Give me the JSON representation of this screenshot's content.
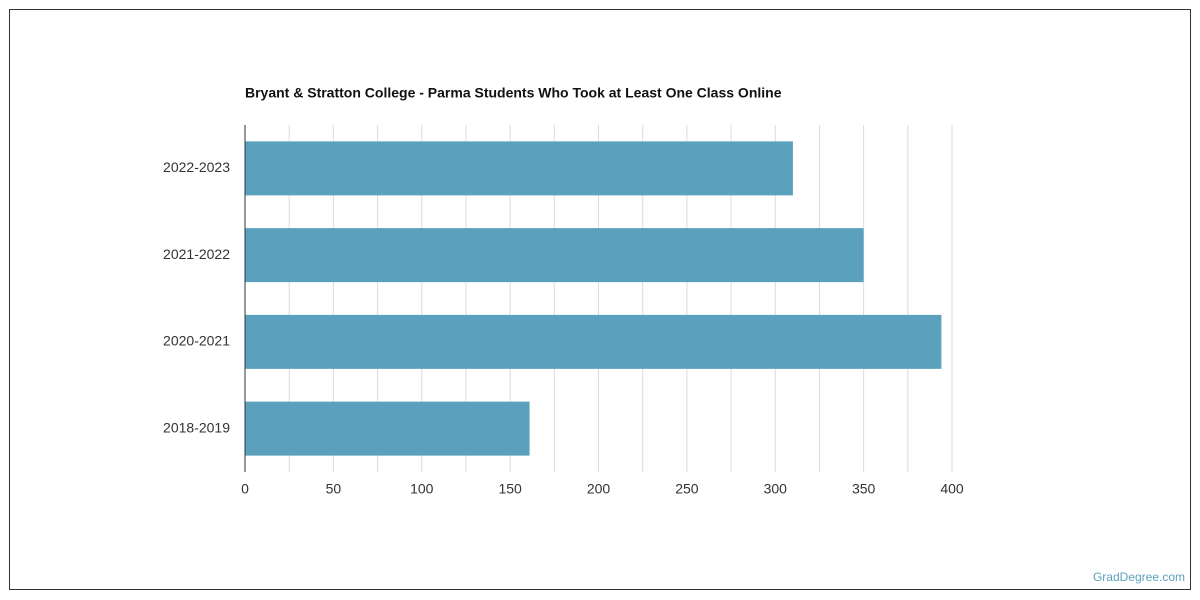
{
  "chart_data": {
    "type": "hbar",
    "title": "Bryant & Stratton College - Parma Students Who Took at Least One Class Online",
    "categories": [
      "2022-2023",
      "2021-2022",
      "2020-2021",
      "2018-2019"
    ],
    "values": [
      310,
      350,
      394,
      161
    ],
    "color": "#5ba1bd",
    "xlim": [
      0,
      400
    ],
    "xticks": [
      0,
      50,
      100,
      150,
      200,
      250,
      300,
      350,
      400
    ],
    "minor_xticks": [
      25,
      75,
      125,
      175,
      225,
      275,
      325,
      375
    ],
    "grid": true
  },
  "watermark": "GradDegree.com"
}
